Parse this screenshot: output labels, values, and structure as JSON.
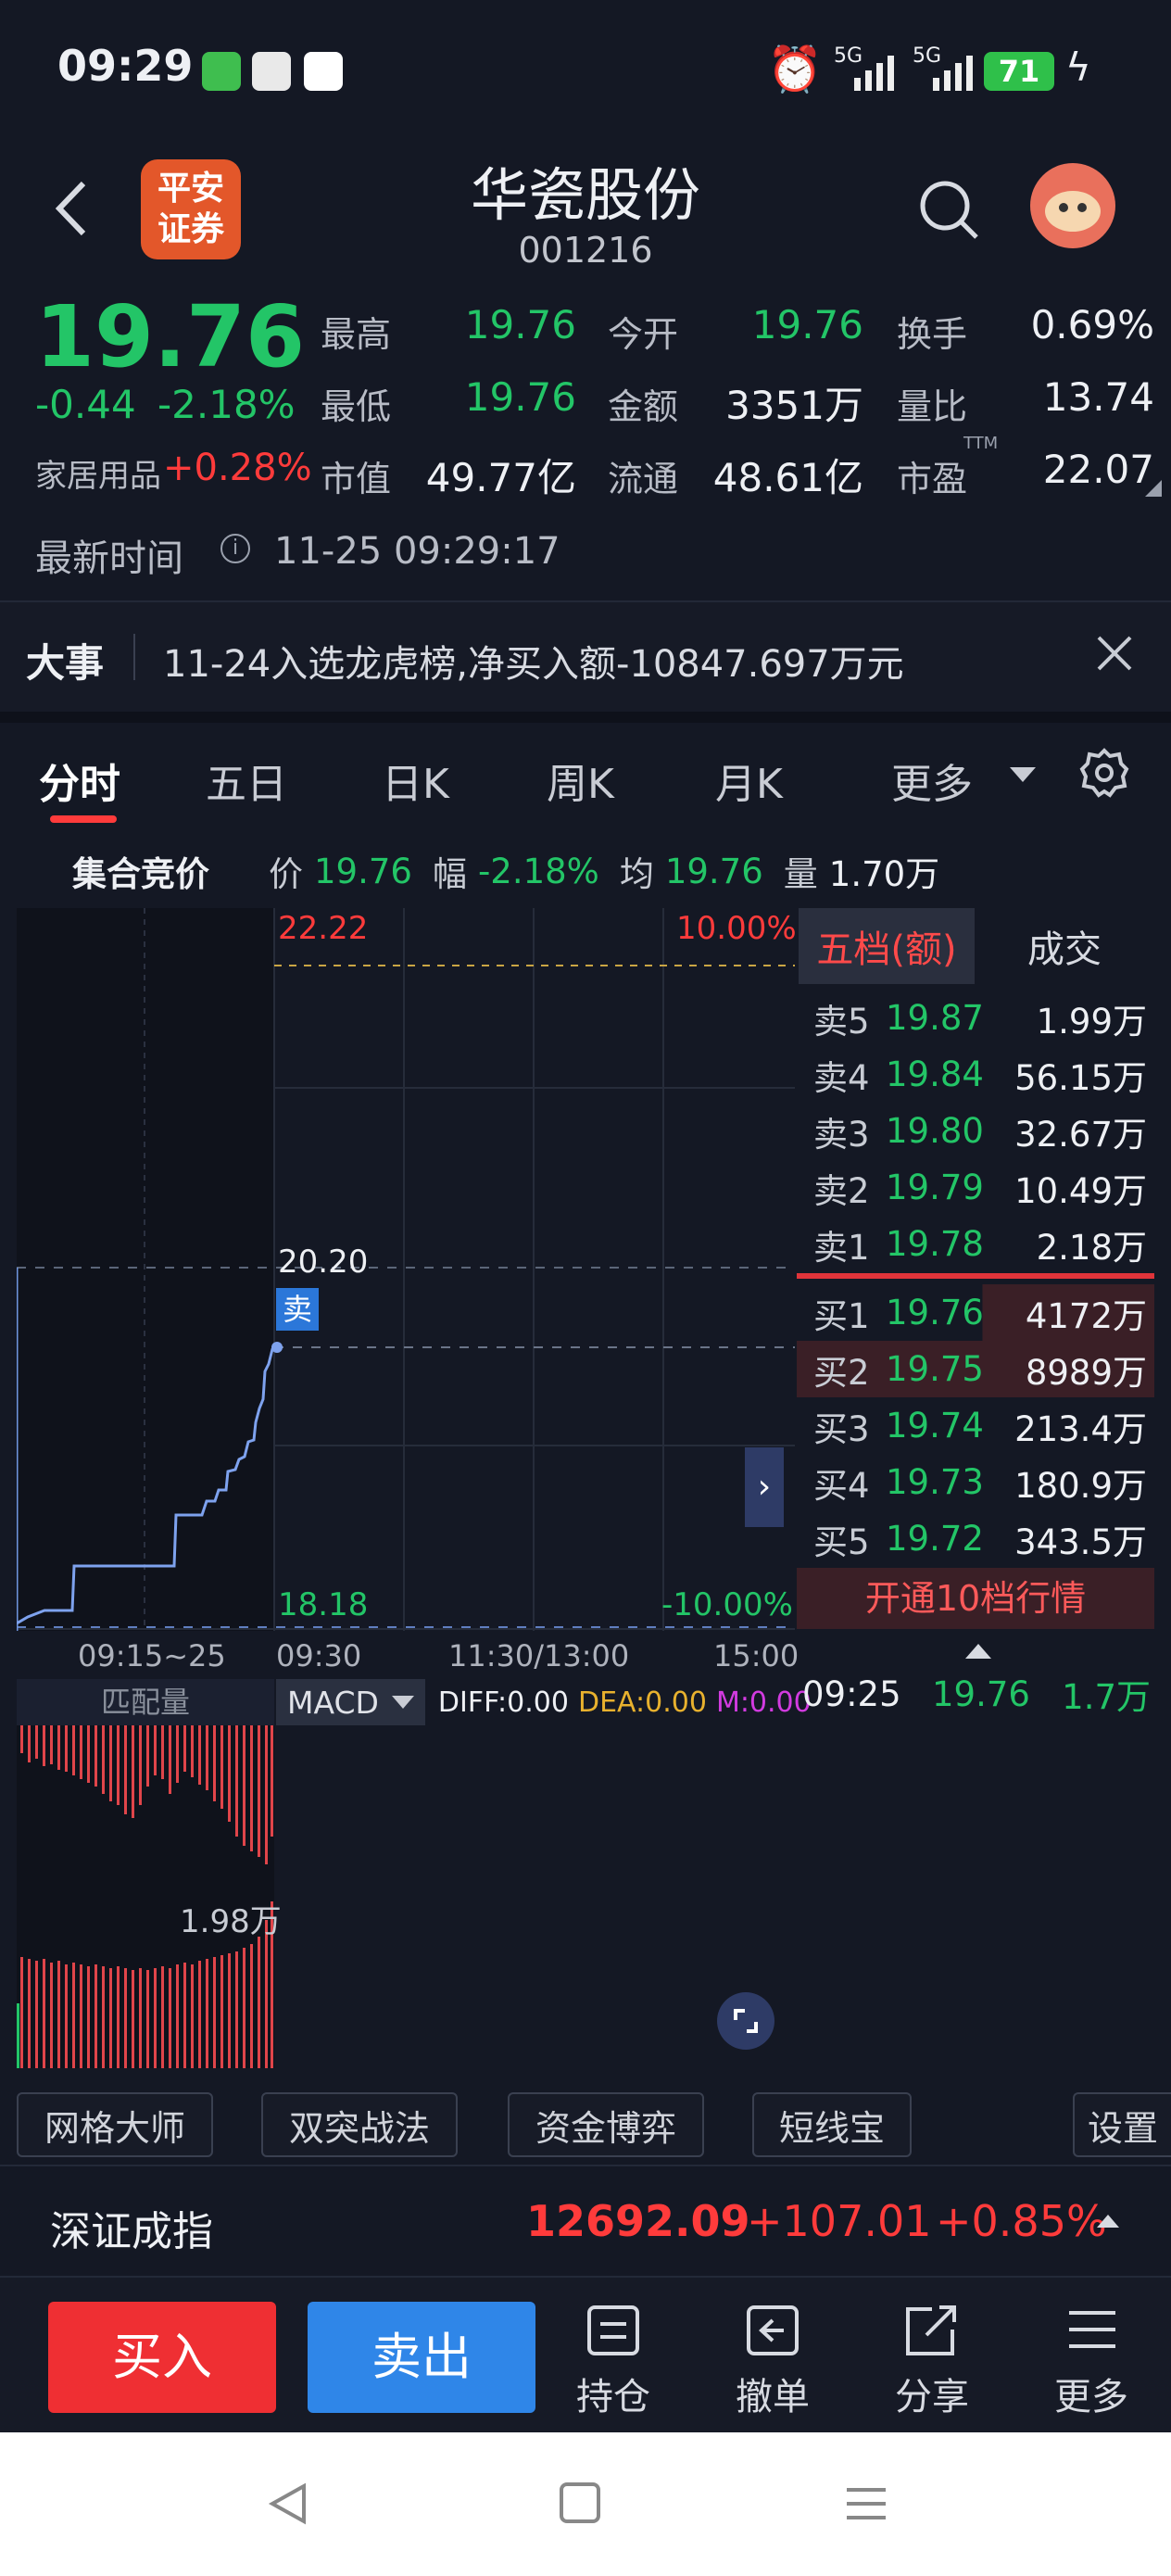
{
  "status": {
    "time": "09:29",
    "battery": "71",
    "net1": "5G",
    "net2": "5G"
  },
  "header": {
    "logo_line1": "平安",
    "logo_line2": "证券",
    "name": "华瓷股份",
    "code": "001216"
  },
  "quote": {
    "price": "19.76",
    "change": "-0.44",
    "change_pct": "-2.18%",
    "sector": "家居用品",
    "sector_pct": "+0.28%",
    "high_label": "最高",
    "high": "19.76",
    "open_label": "今开",
    "open": "19.76",
    "turnover_label": "换手",
    "turnover": "0.69%",
    "low_label": "最低",
    "low": "19.76",
    "amount_label": "金额",
    "amount": "3351万",
    "vratio_label": "量比",
    "vratio": "13.74",
    "mcap_label": "市值",
    "mcap": "49.77亿",
    "float_label": "流通",
    "float": "48.61亿",
    "pe_label": "市盈",
    "pe_sup": "TTM",
    "pe": "22.07",
    "time_label": "最新时间",
    "time": "11-25 09:29:17"
  },
  "news": {
    "tag": "大事",
    "text": "11-24入选龙虎榜,净买入额-10847.697万元"
  },
  "tabs": [
    "分时",
    "五日",
    "日K",
    "周K",
    "月K",
    "更多"
  ],
  "auction": {
    "title": "集合竞价",
    "p_label": "价",
    "p": "19.76",
    "f_label": "幅",
    "f": "-2.18%",
    "a_label": "均",
    "a": "19.76",
    "v_label": "量",
    "v": "1.70万"
  },
  "chart": {
    "y_top": "22.22",
    "y_top_pct": "10.00%",
    "y_mid": "20.20",
    "y_bot": "18.18",
    "y_bot_pct": "-10.00%",
    "sell_tag": "卖",
    "x_pre": "09:15~25",
    "x1": "09:30",
    "x2": "11:30/13:00",
    "x3": "15:00",
    "vol_label": "匹配量",
    "vol_value": "1.98万",
    "macd_label": "MACD",
    "diff": "DIFF:0.00",
    "dea": "DEA:0.00",
    "m": "M:0.00"
  },
  "orderbook": {
    "tab_active": "五档(额)",
    "tab2": "成交",
    "sells": [
      {
        "label": "卖5",
        "price": "19.87",
        "vol": "1.99万"
      },
      {
        "label": "卖4",
        "price": "19.84",
        "vol": "56.15万"
      },
      {
        "label": "卖3",
        "price": "19.80",
        "vol": "32.67万"
      },
      {
        "label": "卖2",
        "price": "19.79",
        "vol": "10.49万"
      },
      {
        "label": "卖1",
        "price": "19.78",
        "vol": "2.18万"
      }
    ],
    "buys": [
      {
        "label": "买1",
        "price": "19.76",
        "vol": "4172万"
      },
      {
        "label": "买2",
        "price": "19.75",
        "vol": "8989万"
      },
      {
        "label": "买3",
        "price": "19.74",
        "vol": "213.4万"
      },
      {
        "label": "买4",
        "price": "19.73",
        "vol": "180.9万"
      },
      {
        "label": "买5",
        "price": "19.72",
        "vol": "343.5万"
      }
    ],
    "upgrade": "开通10档行情",
    "trade": {
      "time": "09:25",
      "price": "19.76",
      "vol": "1.7万"
    }
  },
  "tools": [
    "网格大师",
    "双突战法",
    "资金博弈",
    "短线宝",
    "设置"
  ],
  "index": {
    "name": "深证成指",
    "value": "12692.09",
    "change": "+107.01",
    "pct": "+0.85%"
  },
  "actions": {
    "buy": "买入",
    "sell": "卖出",
    "hold": "持仓",
    "cancel": "撤单",
    "share": "分享",
    "more": "更多"
  }
}
